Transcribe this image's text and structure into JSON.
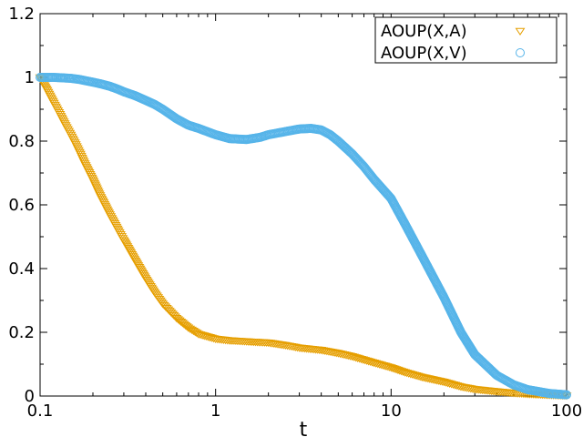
{
  "chart_data": {
    "type": "scatter",
    "title": "",
    "xlabel": "t",
    "ylabel": "",
    "xscale": "log",
    "xlim": [
      0.1,
      100
    ],
    "ylim": [
      0,
      1.2
    ],
    "grid": false,
    "legend_position": "top-right",
    "x_ticks": [
      {
        "value": 0.1,
        "label": "0.1"
      },
      {
        "value": 1,
        "label": "1"
      },
      {
        "value": 10,
        "label": "10"
      },
      {
        "value": 100,
        "label": "100"
      }
    ],
    "y_ticks": [
      {
        "value": 0,
        "label": "0"
      },
      {
        "value": 0.2,
        "label": "0.2"
      },
      {
        "value": 0.4,
        "label": "0.4"
      },
      {
        "value": 0.6,
        "label": "0.6"
      },
      {
        "value": 0.8,
        "label": "0.8"
      },
      {
        "value": 1,
        "label": "1"
      },
      {
        "value": 1.2,
        "label": "1.2"
      }
    ],
    "series": [
      {
        "name": "AOUP(X,A)",
        "marker": "triangle-down",
        "color": "#E69F00",
        "x": [
          0.1,
          0.11,
          0.12,
          0.13,
          0.14,
          0.15,
          0.16,
          0.17,
          0.18,
          0.2,
          0.22,
          0.25,
          0.28,
          0.3,
          0.35,
          0.4,
          0.45,
          0.5,
          0.6,
          0.7,
          0.8,
          1.0,
          1.2,
          1.5,
          2.0,
          2.5,
          3.0,
          4.0,
          5.0,
          6.0,
          8.0,
          10.0,
          12.0,
          15.0,
          20.0,
          25.0,
          30.0,
          40.0,
          50.0,
          60.0,
          80.0,
          100.0
        ],
        "y": [
          1.0,
          0.96,
          0.92,
          0.885,
          0.85,
          0.82,
          0.79,
          0.76,
          0.73,
          0.68,
          0.63,
          0.57,
          0.52,
          0.49,
          0.425,
          0.37,
          0.325,
          0.29,
          0.245,
          0.215,
          0.195,
          0.18,
          0.175,
          0.172,
          0.168,
          0.16,
          0.152,
          0.145,
          0.135,
          0.125,
          0.105,
          0.09,
          0.075,
          0.06,
          0.045,
          0.03,
          0.022,
          0.015,
          0.01,
          0.007,
          0.004,
          0.002
        ]
      },
      {
        "name": "AOUP(X,V)",
        "marker": "circle",
        "color": "#56B4E9",
        "x": [
          0.1,
          0.11,
          0.12,
          0.13,
          0.14,
          0.15,
          0.16,
          0.17,
          0.18,
          0.2,
          0.22,
          0.25,
          0.28,
          0.3,
          0.35,
          0.4,
          0.45,
          0.5,
          0.6,
          0.7,
          0.8,
          1.0,
          1.2,
          1.5,
          1.8,
          2.0,
          2.5,
          3.0,
          3.5,
          4.0,
          4.5,
          5.0,
          6.0,
          7.0,
          8.0,
          10.0,
          12.0,
          15.0,
          20.0,
          25.0,
          30.0,
          40.0,
          50.0,
          60.0,
          80.0,
          100.0
        ],
        "y": [
          1.0,
          1.0,
          1.0,
          0.999,
          0.998,
          0.997,
          0.995,
          0.993,
          0.99,
          0.985,
          0.98,
          0.972,
          0.962,
          0.955,
          0.942,
          0.928,
          0.915,
          0.9,
          0.87,
          0.85,
          0.84,
          0.82,
          0.808,
          0.805,
          0.812,
          0.82,
          0.83,
          0.838,
          0.84,
          0.835,
          0.82,
          0.8,
          0.76,
          0.72,
          0.68,
          0.62,
          0.54,
          0.44,
          0.31,
          0.2,
          0.13,
          0.065,
          0.035,
          0.02,
          0.008,
          0.004
        ]
      }
    ]
  }
}
